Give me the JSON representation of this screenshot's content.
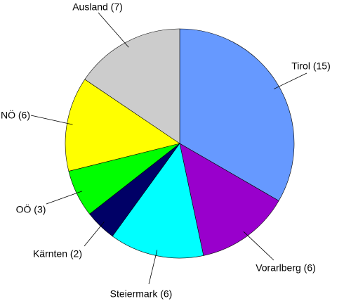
{
  "chart_data": {
    "type": "pie",
    "categories": [
      "Tirol (15)",
      "Vorarlberg (6)",
      "Steiermark (6)",
      "Kärnten (2)",
      "OÖ (3)",
      "NÖ (6)",
      "Ausland (7)"
    ],
    "values": [
      15,
      6,
      6,
      2,
      3,
      6,
      7
    ],
    "colors": [
      "#6699ff",
      "#9900cc",
      "#00ffff",
      "#000066",
      "#00ff00",
      "#ffff00",
      "#cccccc"
    ]
  }
}
